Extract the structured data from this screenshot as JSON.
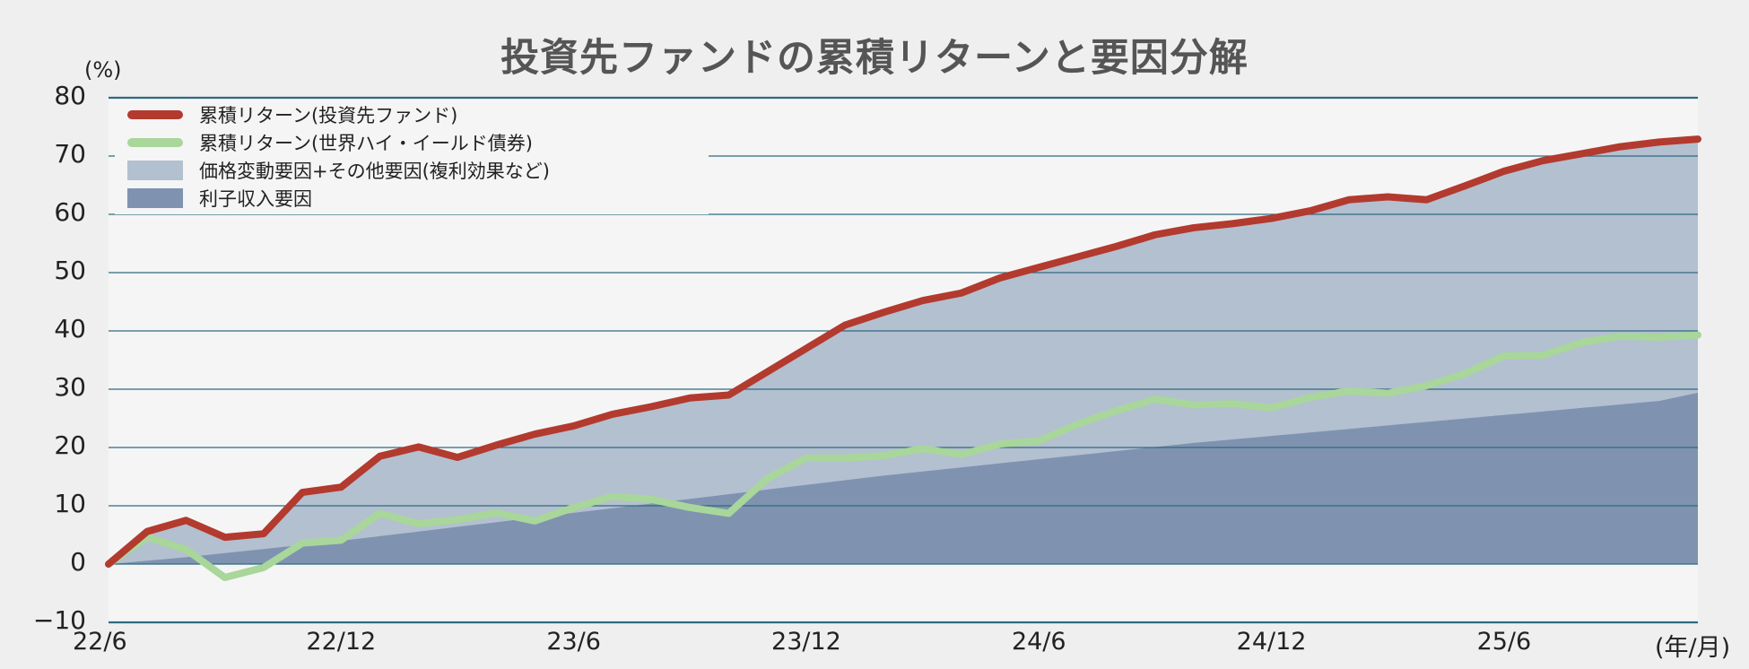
{
  "title": "投資先ファンドの累積リターンと要因分解",
  "y_unit": "(%)",
  "x_unit": "(年/月)",
  "legend": [
    {
      "label": "累積リターン(投資先ファンド)",
      "type": "line",
      "color": "#b33a2e"
    },
    {
      "label": "累積リターン(世界ハイ・イールド債券)",
      "type": "line",
      "color": "#a9d69a"
    },
    {
      "label": "価格変動要因+その他要因(複利効果など)",
      "type": "area",
      "color": "#b3c0d0"
    },
    {
      "label": "利子収入要因",
      "type": "area",
      "color": "#7f93b1"
    }
  ],
  "y_ticks": [
    "80",
    "70",
    "60",
    "50",
    "40",
    "30",
    "20",
    "10",
    "0",
    "−10"
  ],
  "x_ticks": [
    "22/6",
    "22/12",
    "23/6",
    "23/12",
    "24/6",
    "24/12",
    "25/6"
  ],
  "colors": {
    "background": "#efefef",
    "plot_background": "#f5f5f5",
    "gridline": "#2e6a80",
    "fund_line": "#b33a2e",
    "hy_line": "#a9d69a",
    "price_area": "#b3c0d0",
    "income_area": "#7f93b1"
  },
  "chart_data": {
    "type": "line",
    "title": "投資先ファンドの累積リターンと要因分解",
    "xlabel": "(年/月)",
    "ylabel": "(%)",
    "ylim": [
      -10,
      80
    ],
    "grid": true,
    "legend_position": "top-left",
    "x": [
      "22/6",
      "22/7",
      "22/8",
      "22/9",
      "22/10",
      "22/11",
      "22/12",
      "23/1",
      "23/2",
      "23/3",
      "23/4",
      "23/5",
      "23/6",
      "23/7",
      "23/8",
      "23/9",
      "23/10",
      "23/11",
      "23/12",
      "24/1",
      "24/2",
      "24/3",
      "24/4",
      "24/5",
      "24/6",
      "24/7",
      "24/8",
      "24/9",
      "24/10",
      "24/11",
      "24/12",
      "25/1",
      "25/2",
      "25/3",
      "25/4",
      "25/5",
      "25/6",
      "25/7",
      "25/8",
      "25/9",
      "25/10",
      "25/11"
    ],
    "series": [
      {
        "name": "累積リターン(投資先ファンド)",
        "type": "line",
        "values": [
          0,
          5.6,
          7.5,
          4.6,
          5.2,
          12.3,
          13.2,
          18.5,
          20.1,
          18.3,
          20.4,
          22.3,
          23.7,
          25.7,
          27.0,
          28.5,
          29.0,
          33.0,
          37.0,
          41.0,
          43.2,
          45.2,
          46.5,
          49.1,
          50.9,
          52.7,
          54.5,
          56.5,
          57.7,
          58.4,
          59.3,
          60.6,
          62.5,
          63.0,
          62.5,
          64.9,
          67.4,
          69.2,
          70.4,
          71.6,
          72.4,
          72.9
        ]
      },
      {
        "name": "累積リターン(世界ハイ・イールド債券)",
        "type": "line",
        "values": [
          0,
          4.6,
          2.5,
          -2.3,
          -0.6,
          3.6,
          4.1,
          8.7,
          6.9,
          7.6,
          8.8,
          7.4,
          9.7,
          11.6,
          11.1,
          9.7,
          8.7,
          14.7,
          18.2,
          18.2,
          18.6,
          19.8,
          18.8,
          20.6,
          21.1,
          24.0,
          26.3,
          28.3,
          27.3,
          27.5,
          26.8,
          28.6,
          29.7,
          29.3,
          30.6,
          32.7,
          35.7,
          35.8,
          38.0,
          39.1,
          38.9,
          39.3
        ]
      },
      {
        "name": "利子収入要因",
        "type": "area",
        "values": [
          0,
          0.6,
          1.2,
          1.9,
          2.6,
          3.3,
          4.0,
          4.8,
          5.6,
          6.4,
          7.2,
          8.0,
          8.8,
          9.6,
          10.4,
          11.2,
          12.0,
          12.8,
          13.6,
          14.4,
          15.2,
          15.9,
          16.6,
          17.3,
          18.0,
          18.7,
          19.4,
          20.1,
          20.8,
          21.4,
          22.0,
          22.6,
          23.2,
          23.8,
          24.4,
          25.0,
          25.6,
          26.2,
          26.8,
          27.4,
          28.0,
          29.4
        ]
      },
      {
        "name": "価格変動要因+その他要因(複利効果など)",
        "type": "area",
        "note_stacked_top_equals_fund_return": true,
        "values": [
          0,
          5.0,
          6.3,
          2.7,
          2.6,
          9.0,
          9.2,
          13.7,
          14.5,
          11.9,
          13.2,
          14.3,
          14.9,
          16.1,
          16.6,
          17.3,
          17.0,
          20.2,
          23.4,
          26.6,
          28.0,
          29.3,
          29.9,
          31.8,
          32.9,
          34.0,
          35.1,
          36.4,
          36.9,
          37.0,
          37.3,
          38.0,
          39.3,
          39.2,
          38.1,
          39.9,
          41.8,
          43.0,
          43.6,
          44.2,
          44.4,
          43.5
        ]
      }
    ]
  }
}
